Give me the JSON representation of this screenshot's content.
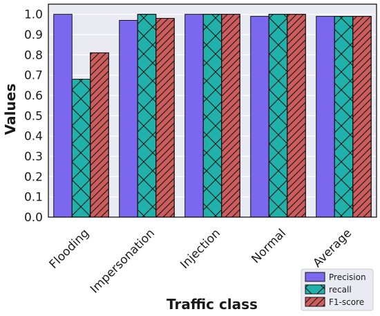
{
  "chart_data": {
    "type": "bar",
    "title": "",
    "xlabel": "Traffic class",
    "ylabel": "Values",
    "ylim": [
      0,
      1.05
    ],
    "yticks": [
      "0.0",
      "0.1",
      "0.2",
      "0.3",
      "0.4",
      "0.5",
      "0.6",
      "0.7",
      "0.8",
      "0.9",
      "1.0"
    ],
    "categories": [
      "Flooding",
      "Impersonation",
      "Injection",
      "Normal",
      "Average"
    ],
    "series": [
      {
        "name": "Precision",
        "values": [
          1.0,
          0.97,
          1.0,
          0.99,
          0.99
        ],
        "color": "#7b68ee",
        "hatch": "none"
      },
      {
        "name": "recall",
        "values": [
          0.68,
          1.0,
          1.0,
          1.0,
          0.99
        ],
        "color": "#20b2aa",
        "hatch": "cross"
      },
      {
        "name": "F1-score",
        "values": [
          0.81,
          0.98,
          1.0,
          1.0,
          0.99
        ],
        "color": "#cd5c5c",
        "hatch": "diagonal"
      }
    ],
    "grid": true,
    "legend": "bottom-right"
  }
}
